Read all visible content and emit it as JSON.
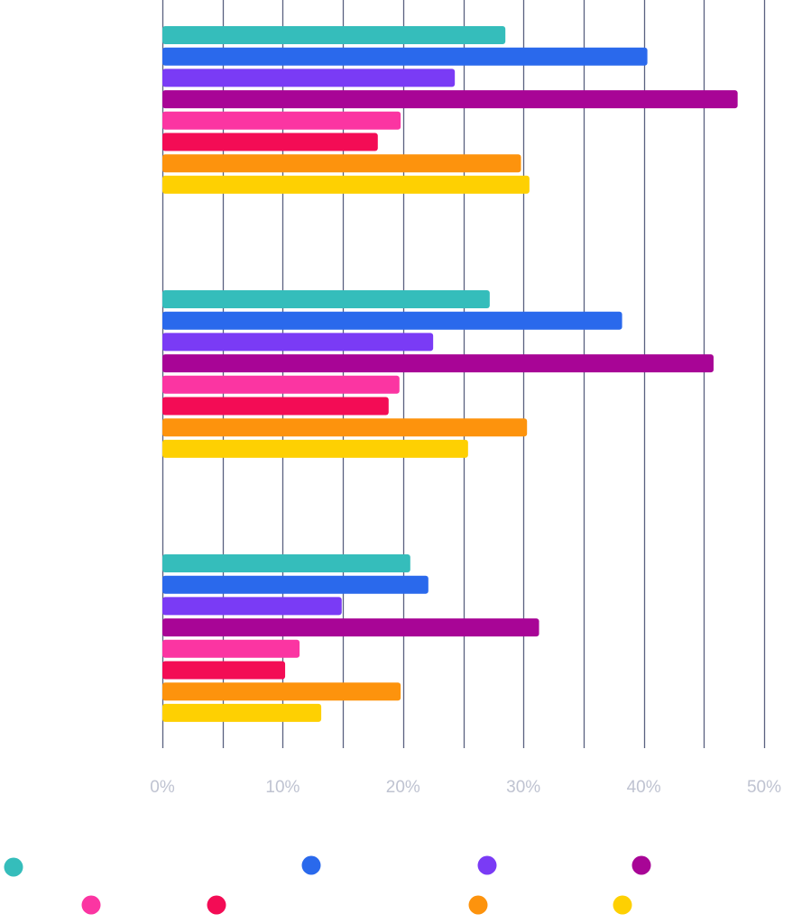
{
  "chart_data": {
    "type": "bar",
    "orientation": "horizontal",
    "title": "",
    "xlabel": "",
    "ylabel": "",
    "xlim": [
      0,
      50
    ],
    "x_ticks": [
      {
        "value": 0,
        "label": "0%"
      },
      {
        "value": 10,
        "label": "10%"
      },
      {
        "value": 20,
        "label": "20%"
      },
      {
        "value": 30,
        "label": "30%"
      },
      {
        "value": 40,
        "label": "40%"
      },
      {
        "value": 50,
        "label": "50%"
      }
    ],
    "grid": true,
    "grid_step": 5,
    "categories": [
      "",
      "",
      ""
    ],
    "series": [
      {
        "color": "#35bdbb",
        "values": [
          28.5,
          27.2,
          20.6
        ]
      },
      {
        "color": "#2a69ec",
        "values": [
          40.3,
          38.2,
          22.1
        ]
      },
      {
        "color": "#7a3bf5",
        "values": [
          24.3,
          22.5,
          14.9
        ]
      },
      {
        "color": "#a80596",
        "values": [
          47.8,
          45.8,
          31.3
        ]
      },
      {
        "color": "#fb35a2",
        "values": [
          19.8,
          19.7,
          11.4
        ]
      },
      {
        "color": "#f30c55",
        "values": [
          17.9,
          18.8,
          10.2
        ]
      },
      {
        "color": "#fd930d",
        "values": [
          29.8,
          30.3,
          19.8
        ]
      },
      {
        "color": "#fed002",
        "values": [
          30.5,
          25.4,
          13.2
        ]
      }
    ],
    "legend_position": "bottom"
  }
}
